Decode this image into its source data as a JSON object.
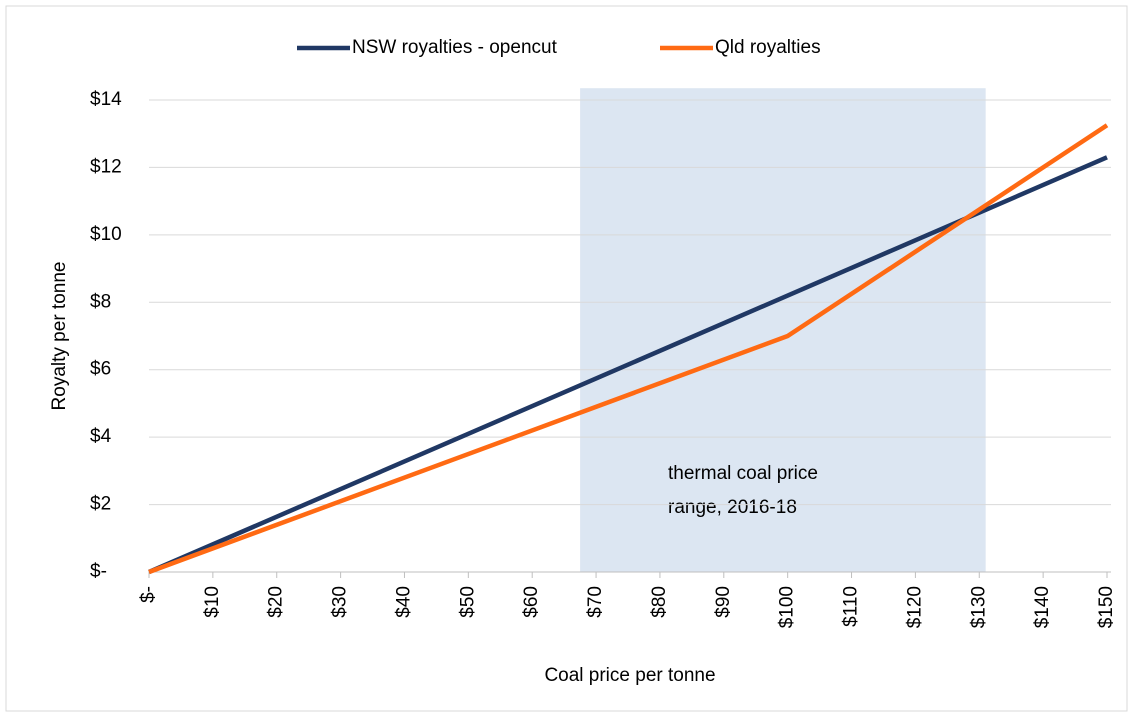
{
  "chart_data": {
    "type": "line",
    "x": [
      0,
      100,
      150
    ],
    "series": [
      {
        "name": "NSW royalties - opencut",
        "color": "#203864",
        "values": [
          0,
          8.2,
          12.3
        ]
      },
      {
        "name": "Qld royalties",
        "color": "#ff6a13",
        "values": [
          0,
          7,
          13.25
        ]
      }
    ],
    "xlim": [
      0,
      150
    ],
    "ylim": [
      0,
      14
    ],
    "xticks": [
      {
        "value": 0,
        "label": "$-"
      },
      {
        "value": 10,
        "label": "$10"
      },
      {
        "value": 20,
        "label": "$20"
      },
      {
        "value": 30,
        "label": "$30"
      },
      {
        "value": 40,
        "label": "$40"
      },
      {
        "value": 50,
        "label": "$50"
      },
      {
        "value": 60,
        "label": "$60"
      },
      {
        "value": 70,
        "label": "$70"
      },
      {
        "value": 80,
        "label": "$80"
      },
      {
        "value": 90,
        "label": "$90"
      },
      {
        "value": 100,
        "label": "$100"
      },
      {
        "value": 110,
        "label": "$110"
      },
      {
        "value": 120,
        "label": "$120"
      },
      {
        "value": 130,
        "label": "$130"
      },
      {
        "value": 140,
        "label": "$140"
      },
      {
        "value": 150,
        "label": "$150"
      }
    ],
    "yticks": [
      {
        "value": 0,
        "label": "$-"
      },
      {
        "value": 2,
        "label": "$2"
      },
      {
        "value": 4,
        "label": "$4"
      },
      {
        "value": 6,
        "label": "$6"
      },
      {
        "value": 8,
        "label": "$8"
      },
      {
        "value": 10,
        "label": "$10"
      },
      {
        "value": 12,
        "label": "$12"
      },
      {
        "value": 14,
        "label": "$14"
      }
    ],
    "grid": true,
    "legend": "top",
    "xlabel": "Coal price per tonne",
    "ylabel": "Royalty per tonne",
    "highlight": {
      "xrange": [
        67.5,
        131
      ],
      "yrange": [
        0,
        14.35
      ],
      "color": "#dce6f2",
      "annotation": [
        "thermal coal price",
        "range, 2016-18"
      ]
    }
  }
}
